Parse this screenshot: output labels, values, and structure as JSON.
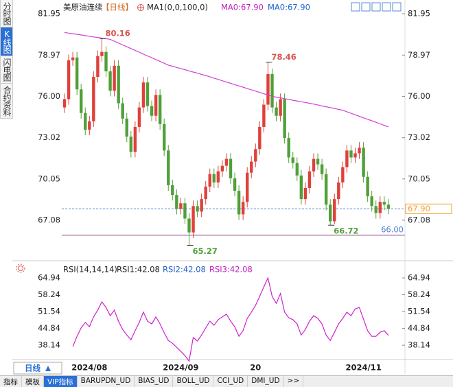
{
  "chart_data": [
    {
      "type": "candlestick",
      "title": "美原油连续",
      "period": "【日线】",
      "up_color": "#e0403a",
      "down_color": "#4fa038",
      "ylim": [
        64.26,
        82.69
      ],
      "yticks": [
        81.95,
        78.97,
        {
          "value": 76,
          "label": "76.00"
        },
        73.02,
        70.05,
        67.08
      ],
      "open": [
        75.2,
        75.8,
        78.6,
        78.8,
        76.5,
        74.8,
        73.6,
        74.2,
        77.4,
        78.9,
        79.2,
        77.8,
        76.4,
        78.2,
        75.5,
        74.4,
        73.1,
        72.0,
        73.8,
        75.2,
        77.0,
        75.3,
        74.6,
        76.1,
        74.0,
        72.1,
        69.6,
        68.9,
        67.9,
        68.3,
        67.2,
        66.2,
        68.1,
        67.7,
        68.6,
        69.5,
        70.4,
        69.8,
        70.6,
        71.0,
        71.5,
        70.1,
        69.2,
        67.5,
        68.4,
        70.5,
        71.3,
        72.2,
        73.8,
        75.4,
        77.6,
        75.2,
        74.6,
        75.8,
        73.0,
        71.6,
        71.2,
        70.3,
        68.6,
        69.4,
        70.6,
        71.5,
        71.1,
        70.4,
        68.2,
        67.0,
        68.6,
        69.8,
        70.9,
        72.1,
        71.6,
        71.9,
        72.3,
        70.2,
        68.8,
        68.1,
        67.6,
        68.4,
        68.2
      ],
      "high": [
        76.2,
        79.0,
        79.2,
        79.2,
        76.9,
        75.2,
        74.6,
        77.8,
        79.3,
        80.16,
        79.6,
        78.2,
        78.6,
        78.6,
        75.9,
        74.8,
        73.5,
        74.2,
        75.6,
        77.4,
        77.4,
        75.7,
        76.5,
        76.5,
        74.4,
        72.5,
        70.0,
        69.3,
        68.7,
        68.7,
        67.6,
        68.5,
        68.5,
        69.0,
        69.9,
        70.8,
        70.8,
        71.0,
        71.4,
        71.9,
        71.9,
        70.5,
        69.6,
        68.8,
        70.9,
        71.7,
        72.6,
        74.2,
        75.8,
        78.46,
        78.0,
        75.6,
        76.2,
        76.2,
        73.4,
        72.0,
        71.6,
        70.7,
        69.8,
        71.0,
        71.9,
        71.9,
        71.5,
        70.8,
        68.6,
        69.0,
        70.2,
        71.3,
        72.5,
        72.5,
        72.3,
        72.7,
        72.7,
        70.6,
        69.2,
        68.5,
        68.8,
        68.8,
        68.6
      ],
      "low": [
        74.8,
        75.4,
        78.2,
        76.1,
        74.4,
        73.2,
        73.2,
        73.8,
        77.0,
        78.5,
        77.4,
        76.0,
        76.0,
        75.1,
        74.0,
        72.7,
        71.6,
        71.6,
        73.4,
        74.8,
        74.9,
        74.2,
        74.2,
        73.6,
        71.7,
        69.2,
        68.5,
        67.5,
        67.5,
        66.8,
        65.27,
        65.8,
        67.3,
        67.3,
        68.2,
        69.1,
        69.4,
        69.4,
        70.2,
        70.6,
        69.7,
        68.8,
        67.1,
        67.1,
        68.0,
        70.1,
        70.9,
        71.8,
        73.4,
        75.0,
        74.8,
        74.2,
        74.2,
        72.6,
        71.2,
        70.8,
        69.9,
        68.2,
        68.2,
        69.0,
        70.2,
        70.7,
        70.0,
        67.8,
        66.72,
        66.8,
        68.2,
        69.4,
        70.5,
        71.2,
        71.2,
        71.5,
        69.8,
        68.4,
        67.7,
        67.2,
        67.2,
        67.8,
        67.5
      ],
      "close": [
        75.8,
        78.6,
        78.8,
        76.5,
        74.8,
        73.6,
        74.2,
        77.4,
        78.9,
        79.2,
        77.8,
        76.4,
        78.2,
        75.5,
        74.4,
        73.1,
        72.0,
        73.8,
        75.2,
        77.0,
        75.3,
        74.6,
        76.1,
        74.0,
        72.1,
        69.6,
        68.9,
        67.9,
        68.3,
        67.2,
        66.2,
        68.1,
        67.7,
        68.6,
        69.5,
        70.4,
        69.8,
        70.6,
        71.0,
        71.5,
        70.1,
        69.2,
        67.5,
        68.4,
        70.5,
        71.3,
        72.2,
        73.8,
        75.4,
        77.6,
        75.2,
        74.6,
        75.8,
        73.0,
        71.6,
        71.2,
        70.3,
        68.6,
        69.4,
        70.6,
        71.5,
        71.1,
        70.4,
        68.2,
        67.0,
        68.6,
        69.8,
        70.9,
        72.1,
        71.6,
        71.9,
        72.3,
        70.2,
        68.8,
        68.1,
        67.6,
        68.4,
        68.2,
        67.9
      ],
      "series": [
        {
          "name": "MA1(0,0,100,0)",
          "color": "#d23fd2",
          "legend_values": [
            {
              "text": "MA0:67.90",
              "color": "#c020c0"
            },
            {
              "text": "MA0:67.90",
              "color": "#2060d0"
            }
          ],
          "values": [
            80.6,
            80.55,
            80.51,
            80.46,
            80.42,
            80.37,
            80.33,
            80.28,
            80.24,
            80.19,
            80.15,
            80.1,
            79.97,
            79.84,
            79.7,
            79.57,
            79.44,
            79.31,
            79.18,
            79.04,
            78.91,
            78.78,
            78.65,
            78.51,
            78.38,
            78.25,
            78.17,
            78.08,
            78.0,
            77.92,
            77.83,
            77.75,
            77.67,
            77.58,
            77.5,
            77.41,
            77.31,
            77.22,
            77.12,
            77.03,
            76.94,
            76.84,
            76.75,
            76.66,
            76.56,
            76.47,
            76.38,
            76.28,
            76.19,
            76.09,
            76.0,
            75.94,
            75.89,
            75.83,
            75.78,
            75.72,
            75.67,
            75.61,
            75.56,
            75.5,
            75.44,
            75.38,
            75.31,
            75.25,
            75.19,
            75.13,
            75.06,
            75.0,
            74.89,
            74.78,
            74.67,
            74.56,
            74.45,
            74.35,
            74.24,
            74.13,
            74.02,
            73.91,
            73.8
          ]
        }
      ],
      "annotations": [
        {
          "value": 80.16,
          "color": "#d9534f"
        },
        {
          "value": 78.46,
          "color": "#d9534f"
        },
        {
          "value": 65.27,
          "color": "#4fa038"
        },
        {
          "value": 66.72,
          "color": "#4fa038"
        }
      ],
      "levels": [
        {
          "value": 66,
          "label": "66.00",
          "color": "#8a3c7a",
          "label_color": "#4a7fd4"
        }
      ],
      "last_price": {
        "value": 67.9,
        "label": "67.90",
        "color": "#f0a030"
      }
    },
    {
      "type": "line",
      "title": "RSI(14,14,14)",
      "ylim": [
        30.8,
        70.4
      ],
      "yticks": [
        64.94,
        58.24,
        51.54,
        44.84,
        38.14
      ],
      "categories": [
        null,
        null,
        null,
        null,
        null,
        null,
        "2024/08",
        null,
        null,
        null,
        null,
        null,
        null,
        null,
        null,
        null,
        null,
        null,
        null,
        null,
        null,
        null,
        null,
        null,
        null,
        null,
        null,
        null,
        "2024/09",
        null,
        null,
        null,
        null,
        null,
        null,
        null,
        null,
        null,
        null,
        null,
        null,
        null,
        null,
        null,
        null,
        null,
        "20",
        null,
        null,
        null,
        null,
        null,
        null,
        null,
        null,
        null,
        null,
        null,
        null,
        null,
        null,
        null,
        null,
        null,
        null,
        null,
        null,
        null,
        null,
        null,
        null,
        null,
        "2024/11",
        null,
        null,
        null,
        null,
        null,
        null
      ],
      "legend_values": [
        {
          "text": "RSI1:42.08",
          "color": "#222222"
        },
        {
          "text": "RSI2:42.08",
          "color": "#2060d0"
        },
        {
          "text": "RSI3:42.08",
          "color": "#c020c0"
        }
      ],
      "series": [
        {
          "name": "RSI",
          "color": "#d020d0",
          "values": [
            null,
            null,
            37.6,
            41.7,
            45.0,
            47.2,
            45.5,
            49.4,
            52.1,
            55.4,
            53.2,
            49.9,
            52.1,
            47.7,
            44.4,
            42.2,
            40.3,
            43.9,
            47.2,
            51.3,
            47.7,
            46.6,
            49.4,
            46.6,
            43.1,
            40.0,
            38.9,
            37.3,
            35.7,
            34.0,
            31.8,
            41.2,
            39.8,
            42.2,
            45.0,
            47.7,
            46.1,
            48.3,
            49.4,
            50.5,
            47.7,
            45.5,
            41.7,
            43.9,
            48.8,
            51.3,
            54.0,
            57.6,
            61.4,
            64.94,
            57.6,
            54.8,
            58.7,
            51.3,
            49.1,
            48.3,
            46.6,
            42.2,
            44.4,
            47.7,
            49.9,
            48.8,
            46.6,
            42.2,
            40.0,
            43.3,
            46.6,
            48.8,
            51.3,
            49.9,
            52.6,
            53.2,
            48.5,
            43.9,
            41.7,
            41.7,
            43.3,
            43.9,
            42.08
          ]
        }
      ]
    }
  ],
  "sidebar": [
    "分时图",
    "K线图",
    "闪电图",
    "合约资料"
  ],
  "period_button": "日线",
  "toolbar": [
    "指标",
    "模板",
    "VIP指标",
    "BARUPDN_UD",
    "BIAS_UD",
    "BOLL_UD",
    "CCI_UD",
    "DMI_UD",
    ">>"
  ]
}
